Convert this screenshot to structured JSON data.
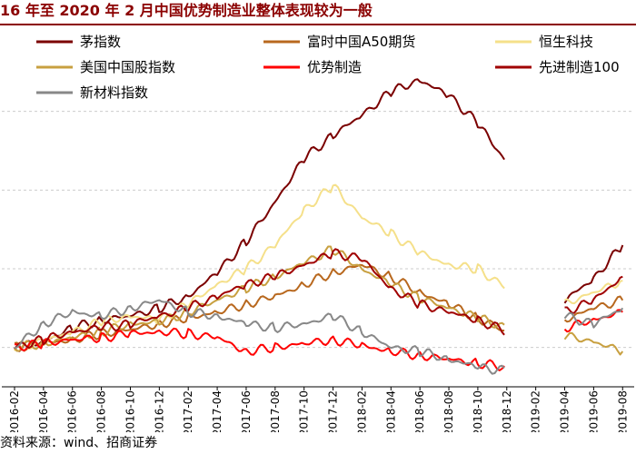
{
  "title": "16 年至 2020 年 2 月中国优势制造业整体表现较为一般",
  "source": "wind、招商证券",
  "chart_data": {
    "type": "line",
    "title": "16 年至 2020 年 2 月中国优势制造业整体表现较为一般",
    "xlabel": "",
    "ylabel": "",
    "grid": true,
    "legend_position": "top",
    "categories": [
      "2016-02",
      "2016-04",
      "2016-06",
      "2016-08",
      "2016-10",
      "2016-12",
      "2017-02",
      "2017-04",
      "2017-06",
      "2017-08",
      "2017-10",
      "2017-12",
      "2018-02",
      "2018-04",
      "2018-06",
      "2018-08",
      "2018-10",
      "2018-12",
      "2019-02",
      "2019-04",
      "2019-06",
      "2019-08"
    ],
    "series": [
      {
        "name": "茅指数",
        "color": "#7b0000",
        "values": [
          1.0,
          1.03,
          1.1,
          1.14,
          1.16,
          1.2,
          1.26,
          1.38,
          1.54,
          1.74,
          1.96,
          2.08,
          2.18,
          2.3,
          2.36,
          2.28,
          2.14,
          1.94,
          null,
          1.24,
          1.35,
          1.52
        ]
      },
      {
        "name": "富时中国A50期货",
        "color": "#b8681e",
        "values": [
          1.0,
          1.02,
          1.04,
          1.07,
          1.09,
          1.12,
          1.15,
          1.18,
          1.22,
          1.26,
          1.32,
          1.38,
          1.42,
          1.36,
          1.28,
          1.22,
          1.15,
          1.08,
          null,
          1.14,
          1.2,
          1.24
        ]
      },
      {
        "name": "恒生科技",
        "color": "#f5e08a",
        "values": [
          1.0,
          1.03,
          1.08,
          1.13,
          1.16,
          1.14,
          1.22,
          1.32,
          1.4,
          1.52,
          1.7,
          1.82,
          1.66,
          1.58,
          1.48,
          1.42,
          1.4,
          1.3,
          null,
          1.22,
          1.28,
          1.34
        ]
      },
      {
        "name": "美国中国股指数",
        "color": "#c8a040",
        "values": [
          1.0,
          1.02,
          1.05,
          1.08,
          1.12,
          1.13,
          1.18,
          1.24,
          1.3,
          1.36,
          1.43,
          1.5,
          1.4,
          1.32,
          1.25,
          1.2,
          1.15,
          1.1,
          null,
          1.06,
          1.03,
          0.98
        ]
      },
      {
        "name": "优势制造",
        "color": "#ff0000",
        "values": [
          1.0,
          1.02,
          1.04,
          1.05,
          1.07,
          1.08,
          1.07,
          1.05,
          0.98,
          1.0,
          1.02,
          1.04,
          1.01,
          0.98,
          0.96,
          0.94,
          0.92,
          0.9,
          null,
          1.1,
          1.14,
          1.18
        ]
      },
      {
        "name": "先进制造100",
        "color": "#a00000",
        "values": [
          1.0,
          1.04,
          1.08,
          1.1,
          1.12,
          1.16,
          1.2,
          1.26,
          1.32,
          1.36,
          1.42,
          1.48,
          1.45,
          1.3,
          1.22,
          1.18,
          1.14,
          1.08,
          null,
          1.18,
          1.24,
          1.36
        ]
      },
      {
        "name": "新材料指数",
        "color": "#888888",
        "values": [
          1.0,
          1.12,
          1.18,
          1.16,
          1.2,
          1.24,
          1.18,
          1.16,
          1.12,
          1.1,
          1.12,
          1.16,
          1.08,
          1.0,
          0.98,
          0.94,
          0.9,
          0.88,
          null,
          1.16,
          1.12,
          1.2
        ]
      }
    ]
  }
}
